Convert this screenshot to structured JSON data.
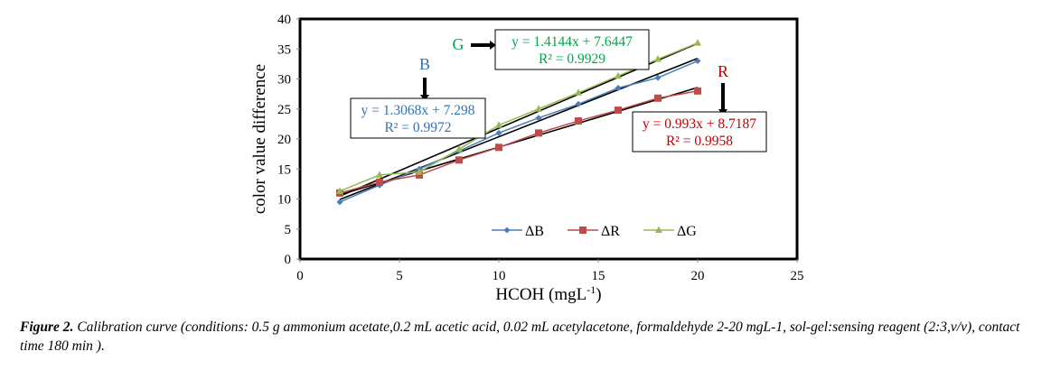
{
  "chart_data": {
    "type": "line",
    "title": "",
    "xlabel": "HCOH (mgL",
    "xlabel_sup": "-1",
    "xlabel_end": ")",
    "ylabel": "color value difference",
    "xlim": [
      0,
      25
    ],
    "ylim": [
      0,
      40
    ],
    "xticks": [
      "0",
      "5",
      "10",
      "15",
      "20",
      "25"
    ],
    "yticks": [
      "0",
      "5",
      "10",
      "15",
      "20",
      "25",
      "30",
      "35",
      "40"
    ],
    "grid": false,
    "legend_position": "bottom-center",
    "x": [
      2,
      4,
      6,
      8,
      10,
      12,
      14,
      16,
      18,
      20
    ],
    "series": [
      {
        "name": "ΔB",
        "color": "#4a7ebb",
        "marker": "diamond",
        "values": [
          9.5,
          12.3,
          15.0,
          18.0,
          21.0,
          23.5,
          25.8,
          28.5,
          30.2,
          33.0
        ],
        "trend": {
          "slope": 1.3068,
          "intercept": 7.298
        }
      },
      {
        "name": "ΔR",
        "color": "#be4b48",
        "marker": "square",
        "values": [
          11.0,
          12.8,
          14.0,
          16.5,
          18.6,
          21.0,
          23.0,
          24.8,
          26.8,
          28.0
        ],
        "trend": {
          "slope": 0.993,
          "intercept": 8.7187
        }
      },
      {
        "name": "ΔG",
        "color": "#98b954",
        "marker": "triangle",
        "values": [
          11.3,
          14.0,
          14.5,
          18.3,
          22.3,
          25.0,
          27.7,
          30.5,
          33.3,
          36.0
        ],
        "trend": {
          "slope": 1.4144,
          "intercept": 7.6447
        }
      }
    ],
    "annotations": [
      {
        "label": "B",
        "color": "#2e74b5",
        "eq": "y = 1.3068x + 7.298",
        "r2": "R² = 0.9972"
      },
      {
        "label": "G",
        "color": "#00a651",
        "eq": "y = 1.4144x + 7.6447",
        "r2": "R² = 0.9929"
      },
      {
        "label": "R",
        "color": "#c00000",
        "eq": "y = 0.993x + 8.7187",
        "r2": "R² = 0.9958"
      }
    ]
  },
  "caption": {
    "label": "Figure 2.",
    "text": " Calibration curve (conditions: 0.5 g ammonium acetate,0.2 mL acetic acid, 0.02 mL acetylacetone, formaldehyde 2-20 mgL-1, sol-gel:sensing reagent (2:3,v/v), contact time 180 min )."
  }
}
